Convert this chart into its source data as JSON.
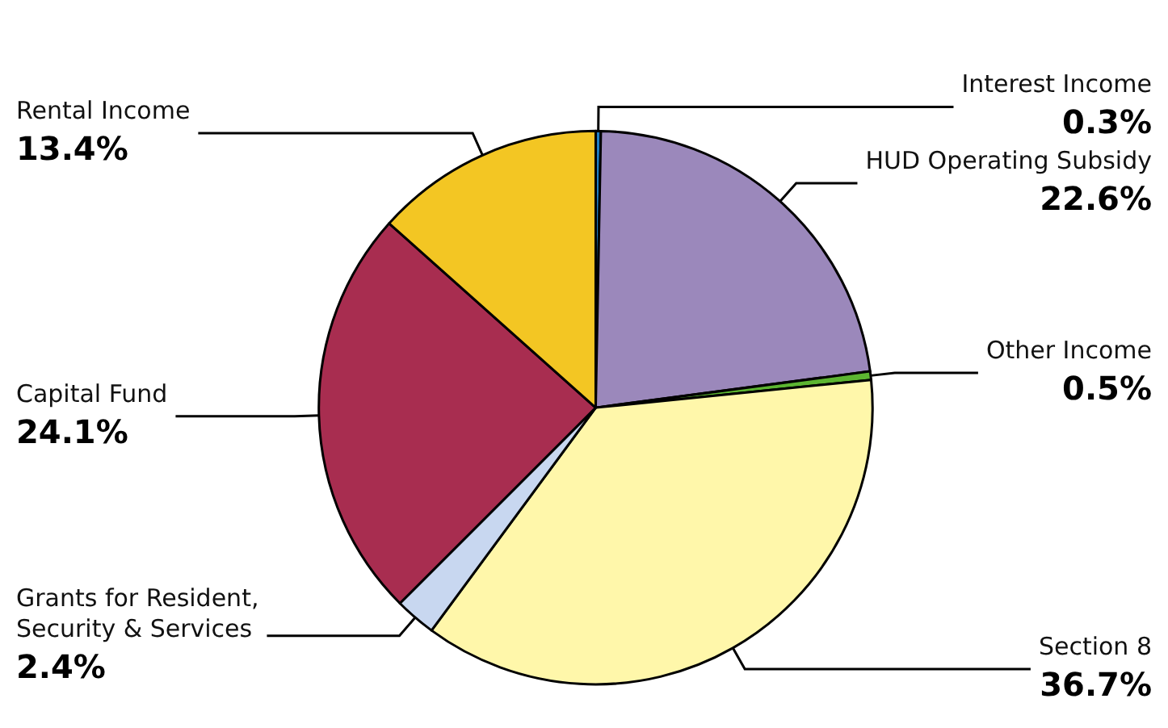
{
  "chart_data": {
    "type": "pie",
    "categories": [
      "Interest Income",
      "HUD Operating Subsidy",
      "Other Income",
      "Section 8",
      "Grants for Resident,\nSecurity & Services",
      "Capital Fund",
      "Rental Income"
    ],
    "values": [
      0.3,
      22.6,
      0.5,
      36.7,
      2.4,
      24.1,
      13.4
    ],
    "value_labels": [
      "0.3%",
      "22.6%",
      "0.5%",
      "36.7%",
      "2.4%",
      "24.1%",
      "13.4%"
    ],
    "colors": [
      "#1f7fc4",
      "#9b88bb",
      "#5cb531",
      "#fff7aa",
      "#c8d7f0",
      "#a82d50",
      "#f3c623"
    ],
    "legend": false
  }
}
